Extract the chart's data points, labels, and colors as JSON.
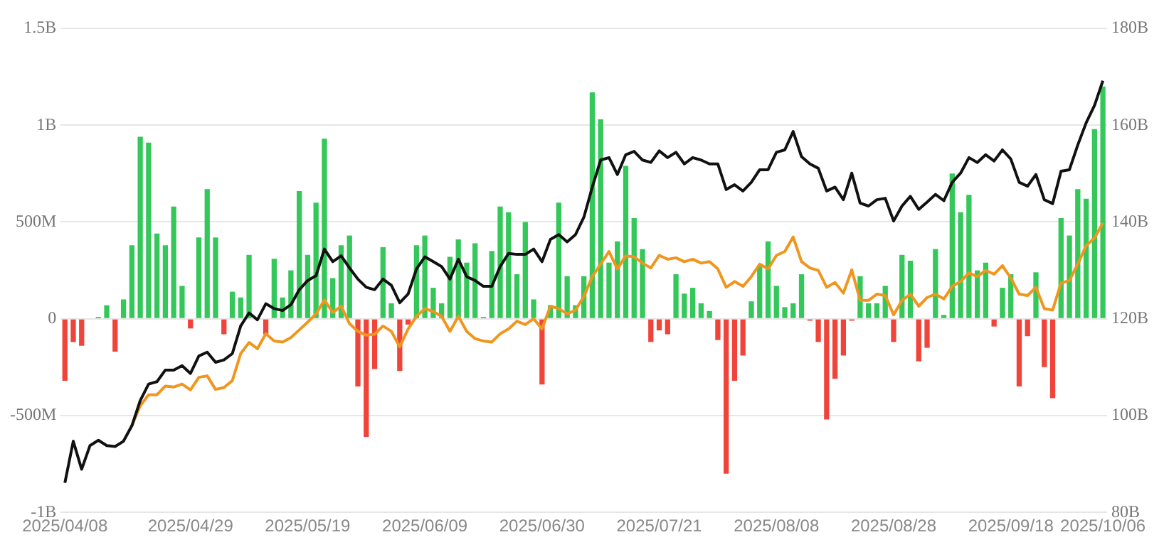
{
  "chart_data": {
    "type": "bar",
    "categories": [
      "2025/04/08",
      null,
      null,
      null,
      null,
      null,
      null,
      null,
      null,
      null,
      null,
      null,
      null,
      null,
      null,
      "2025/04/29",
      null,
      null,
      null,
      null,
      null,
      null,
      null,
      null,
      null,
      null,
      null,
      null,
      null,
      "2025/05/19",
      null,
      null,
      null,
      null,
      null,
      null,
      null,
      null,
      null,
      null,
      null,
      null,
      null,
      "2025/06/09",
      null,
      null,
      null,
      null,
      null,
      null,
      null,
      null,
      null,
      null,
      null,
      null,
      null,
      "2025/06/30",
      null,
      null,
      null,
      null,
      null,
      null,
      null,
      null,
      null,
      null,
      null,
      null,
      null,
      "2025/07/21",
      null,
      null,
      null,
      null,
      null,
      null,
      null,
      null,
      null,
      null,
      null,
      null,
      null,
      "2025/08/08",
      null,
      null,
      null,
      null,
      null,
      null,
      null,
      null,
      null,
      null,
      null,
      null,
      null,
      "2025/08/28",
      null,
      null,
      null,
      null,
      null,
      null,
      null,
      null,
      null,
      null,
      null,
      null,
      null,
      "2025/09/18",
      null,
      null,
      null,
      null,
      null,
      null,
      null,
      null,
      null,
      null,
      "2025/10/06"
    ],
    "series": [
      {
        "colors": [
          "#f0443a",
          "#f0443a",
          "#f0443a",
          "#34c759",
          "#34c759",
          "#34c759",
          "#f0443a",
          "#34c759",
          "#34c759",
          "#34c759",
          "#34c759",
          "#34c759",
          "#34c759",
          "#34c759",
          "#34c759",
          "#f0443a",
          "#34c759",
          "#34c759",
          "#34c759",
          "#f0443a",
          "#34c759",
          "#34c759",
          "#34c759",
          "#34c759",
          "#f0443a",
          "#34c759",
          "#34c759",
          "#34c759",
          "#34c759",
          "#34c759",
          "#34c759",
          "#34c759",
          "#34c759",
          "#34c759",
          "#34c759",
          "#f0443a",
          "#f0443a",
          "#f0443a",
          "#34c759",
          "#34c759",
          "#f0443a",
          "#f0443a",
          "#34c759",
          "#34c759",
          "#34c759",
          "#34c759",
          "#34c759",
          "#34c759",
          "#34c759",
          "#34c759",
          "#34c759",
          "#34c759",
          "#34c759",
          "#34c759",
          "#34c759",
          "#34c759",
          "#34c759",
          "#f0443a",
          "#34c759",
          "#34c759",
          "#34c759",
          "#34c759",
          "#34c759",
          "#34c759",
          "#34c759",
          "#34c759",
          "#34c759",
          "#34c759",
          "#34c759",
          "#34c759",
          "#f0443a",
          "#f0443a",
          "#f0443a",
          "#34c759",
          "#34c759",
          "#34c759",
          "#34c759",
          "#34c759",
          "#f0443a",
          "#f0443a",
          "#f0443a",
          "#f0443a",
          "#34c759",
          "#34c759",
          "#34c759",
          "#34c759",
          "#34c759",
          "#34c759",
          "#34c759",
          "#f0443a",
          "#f0443a",
          "#f0443a",
          "#f0443a",
          "#f0443a",
          "#f0443a",
          "#34c759",
          "#34c759",
          "#34c759",
          "#34c759",
          "#f0443a",
          "#34c759",
          "#34c759",
          "#f0443a",
          "#f0443a",
          "#34c759",
          "#34c759",
          "#34c759",
          "#34c759",
          "#34c759",
          "#34c759",
          "#34c759",
          "#f0443a",
          "#34c759",
          "#34c759",
          "#f0443a",
          "#f0443a",
          "#34c759",
          "#f0443a",
          "#f0443a",
          "#34c759",
          "#34c759",
          "#34c759",
          "#34c759",
          "#34c759",
          "#34c759"
        ],
        "values": [
          -320000000,
          -120000000,
          -140000000,
          0,
          10000000,
          70000000,
          -170000000,
          100000000,
          380000000,
          940000000,
          910000000,
          440000000,
          380000000,
          580000000,
          170000000,
          -50000000,
          420000000,
          670000000,
          420000000,
          -80000000,
          140000000,
          110000000,
          330000000,
          0,
          -80000000,
          310000000,
          110000000,
          250000000,
          660000000,
          330000000,
          600000000,
          930000000,
          210000000,
          380000000,
          430000000,
          -350000000,
          -610000000,
          -260000000,
          370000000,
          80000000,
          -270000000,
          -30000000,
          380000000,
          430000000,
          160000000,
          80000000,
          320000000,
          410000000,
          290000000,
          390000000,
          10000000,
          350000000,
          580000000,
          550000000,
          230000000,
          500000000,
          100000000,
          -340000000,
          70000000,
          600000000,
          220000000,
          70000000,
          220000000,
          1170000000,
          1030000000,
          290000000,
          400000000,
          790000000,
          520000000,
          360000000,
          -120000000,
          -60000000,
          -80000000,
          230000000,
          130000000,
          160000000,
          80000000,
          40000000,
          -110000000,
          -800000000,
          -320000000,
          -190000000,
          90000000,
          270000000,
          400000000,
          170000000,
          60000000,
          80000000,
          230000000,
          -10000000,
          -120000000,
          -520000000,
          -310000000,
          -190000000,
          -10000000,
          220000000,
          80000000,
          80000000,
          170000000,
          -120000000,
          330000000,
          300000000,
          -220000000,
          -150000000,
          360000000,
          20000000,
          750000000,
          550000000,
          640000000,
          250000000,
          290000000,
          -40000000,
          160000000,
          230000000,
          -350000000,
          -90000000,
          240000000,
          -250000000,
          -410000000,
          520000000,
          430000000,
          670000000,
          620000000,
          980000000,
          1200000000
        ]
      },
      {
        "type": "line",
        "axis": "y2",
        "color": "#111111",
        "values": [
          86.1,
          94.7,
          88.9,
          93.8,
          94.9,
          93.8,
          93.6,
          94.7,
          97.9,
          103.1,
          106.5,
          107.0,
          109.4,
          109.4,
          110.3,
          108.7,
          112.3,
          113.1,
          111.0,
          111.5,
          112.8,
          118.5,
          121.2,
          119.8,
          123.1,
          122.1,
          121.7,
          122.9,
          126.0,
          127.9,
          128.9,
          134.4,
          131.8,
          133.0,
          130.5,
          128.2,
          126.5,
          126.0,
          128.2,
          126.9,
          123.3,
          125.1,
          130.3,
          132.8,
          131.8,
          130.8,
          128.2,
          132.3,
          128.7,
          127.9,
          126.7,
          126.7,
          130.8,
          133.5,
          133.3,
          133.3,
          134.4,
          131.8,
          136.4,
          137.4,
          135.9,
          137.4,
          141.0,
          147.2,
          152.8,
          153.3,
          149.8,
          153.9,
          154.6,
          152.8,
          152.3,
          154.7,
          153.3,
          154.4,
          152.0,
          153.3,
          152.8,
          152.0,
          152.0,
          146.7,
          147.7,
          146.4,
          148.2,
          150.8,
          150.8,
          154.4,
          154.9,
          158.7,
          153.5,
          152.0,
          151.1,
          146.4,
          147.2,
          144.6,
          150.1,
          143.9,
          143.3,
          144.6,
          144.9,
          140.2,
          143.3,
          145.3,
          142.6,
          144.1,
          145.7,
          144.4,
          148.2,
          150.1,
          153.3,
          152.3,
          153.9,
          152.6,
          154.9,
          153.0,
          148.2,
          147.4,
          149.8,
          144.6,
          143.8,
          150.5,
          150.8,
          155.9,
          160.5,
          164.1,
          169.2
        ]
      },
      {
        "type": "line",
        "axis": "y2",
        "color": "#f0961e",
        "values": [
          null,
          null,
          null,
          null,
          null,
          null,
          null,
          null,
          97.9,
          102.0,
          104.3,
          104.3,
          106.1,
          105.9,
          106.5,
          105.3,
          107.9,
          108.2,
          105.4,
          105.8,
          107.2,
          112.8,
          115.1,
          113.8,
          116.9,
          115.4,
          115.2,
          116.1,
          117.7,
          119.3,
          121.0,
          123.9,
          121.3,
          122.6,
          119.0,
          117.4,
          116.6,
          116.8,
          118.5,
          117.4,
          114.2,
          117.9,
          120.5,
          122.1,
          121.5,
          120.5,
          117.4,
          120.5,
          117.4,
          115.9,
          115.4,
          115.2,
          116.9,
          117.9,
          119.5,
          118.8,
          120.0,
          117.9,
          122.6,
          122.1,
          121.0,
          121.8,
          124.6,
          128.7,
          131.3,
          133.9,
          130.3,
          133.0,
          132.8,
          131.5,
          130.5,
          133.1,
          132.3,
          132.6,
          131.8,
          132.3,
          131.5,
          131.8,
          130.3,
          126.5,
          127.7,
          126.7,
          128.7,
          131.3,
          130.3,
          133.1,
          133.9,
          136.9,
          131.8,
          130.5,
          130.0,
          126.5,
          127.5,
          125.3,
          130.1,
          123.8,
          123.8,
          125.1,
          124.8,
          120.8,
          123.8,
          125.1,
          122.6,
          124.4,
          125.1,
          124.1,
          126.7,
          127.7,
          129.5,
          128.7,
          130.0,
          129.2,
          131.0,
          128.4,
          125.1,
          124.8,
          126.5,
          122.1,
          121.8,
          127.4,
          127.9,
          131.3,
          135.1,
          136.7,
          139.8
        ]
      }
    ],
    "ylim": [
      -1000000000,
      1500000000
    ],
    "yticks": [
      {
        "value": -1000000000,
        "label": "-1B"
      },
      {
        "value": -500000000,
        "label": "-500M"
      },
      0,
      {
        "value": 500000000,
        "label": "500M"
      },
      {
        "value": 1000000000,
        "label": "1B"
      },
      {
        "value": 1500000000,
        "label": "1.5B"
      }
    ],
    "y2lim": [
      80,
      180
    ],
    "y2ticks": [
      {
        "value": 80,
        "label": "80B"
      },
      {
        "value": 100,
        "label": "100B"
      },
      {
        "value": 120,
        "label": "120B"
      },
      {
        "value": 140,
        "label": "140B"
      },
      {
        "value": 160,
        "label": "160B"
      },
      {
        "value": 180,
        "label": "180B"
      }
    ],
    "grid": "y",
    "marker": "none",
    "line_style": "solid"
  }
}
